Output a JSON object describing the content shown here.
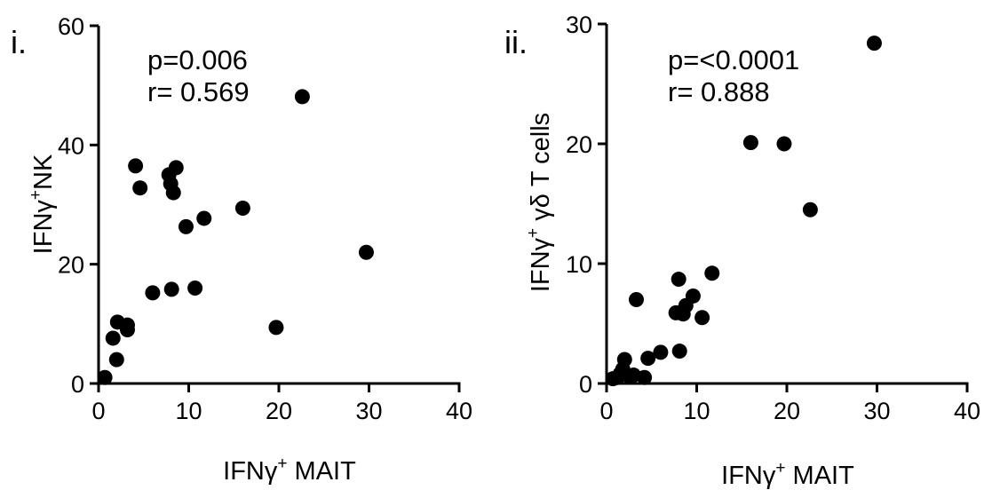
{
  "chart_data": [
    {
      "type": "scatter",
      "panel_label": "i.",
      "p_text": "p=0.006",
      "r_text": "r= 0.569",
      "xlabel_main": "IFNγ",
      "xlabel_sup": "+",
      "xlabel_rest": " MAIT",
      "ylabel_main": "IFNγ",
      "ylabel_sup": "+",
      "ylabel_rest": "NK",
      "xlim": [
        0,
        40
      ],
      "ylim": [
        0,
        60
      ],
      "xticks": [
        0,
        10,
        20,
        30,
        40
      ],
      "yticks": [
        0,
        20,
        40,
        60
      ],
      "points": [
        {
          "x": 0.7,
          "y": 1.0
        },
        {
          "x": 1.6,
          "y": 7.6
        },
        {
          "x": 2.0,
          "y": 4.0
        },
        {
          "x": 2.1,
          "y": 10.3
        },
        {
          "x": 3.2,
          "y": 9.8
        },
        {
          "x": 3.2,
          "y": 9.0
        },
        {
          "x": 4.1,
          "y": 36.5
        },
        {
          "x": 4.6,
          "y": 32.8
        },
        {
          "x": 6.0,
          "y": 15.2
        },
        {
          "x": 7.8,
          "y": 35.0
        },
        {
          "x": 8.0,
          "y": 33.5
        },
        {
          "x": 8.1,
          "y": 15.8
        },
        {
          "x": 8.3,
          "y": 32.0
        },
        {
          "x": 8.6,
          "y": 36.2
        },
        {
          "x": 9.7,
          "y": 26.3
        },
        {
          "x": 10.7,
          "y": 16.0
        },
        {
          "x": 11.7,
          "y": 27.7
        },
        {
          "x": 16.0,
          "y": 29.4
        },
        {
          "x": 19.7,
          "y": 9.4
        },
        {
          "x": 22.6,
          "y": 48.1
        },
        {
          "x": 29.7,
          "y": 22.0
        }
      ]
    },
    {
      "type": "scatter",
      "panel_label": "ii.",
      "p_text": "p=<0.0001",
      "r_text": "r= 0.888",
      "xlabel_main": "IFNγ",
      "xlabel_sup": "+",
      "xlabel_rest": " MAIT",
      "ylabel_main": "IFNγ",
      "ylabel_sup": "+",
      "ylabel_rest": " γδ T cells",
      "xlim": [
        0,
        40
      ],
      "ylim": [
        0,
        30
      ],
      "xticks": [
        0,
        10,
        20,
        30,
        40
      ],
      "yticks": [
        0,
        10,
        20,
        30
      ],
      "points": [
        {
          "x": 0.7,
          "y": 0.4
        },
        {
          "x": 1.2,
          "y": 0.5
        },
        {
          "x": 1.5,
          "y": 0.8
        },
        {
          "x": 1.8,
          "y": 1.2
        },
        {
          "x": 2.0,
          "y": 2.0
        },
        {
          "x": 2.5,
          "y": 0.6
        },
        {
          "x": 3.0,
          "y": 0.7
        },
        {
          "x": 3.3,
          "y": 7.0
        },
        {
          "x": 4.2,
          "y": 0.5
        },
        {
          "x": 4.6,
          "y": 2.1
        },
        {
          "x": 6.0,
          "y": 2.6
        },
        {
          "x": 7.7,
          "y": 5.9
        },
        {
          "x": 8.0,
          "y": 8.7
        },
        {
          "x": 8.1,
          "y": 2.7
        },
        {
          "x": 8.5,
          "y": 5.8
        },
        {
          "x": 8.8,
          "y": 6.5
        },
        {
          "x": 9.6,
          "y": 7.3
        },
        {
          "x": 10.6,
          "y": 5.5
        },
        {
          "x": 11.7,
          "y": 9.2
        },
        {
          "x": 16.0,
          "y": 20.1
        },
        {
          "x": 19.7,
          "y": 20.0
        },
        {
          "x": 22.6,
          "y": 14.5
        },
        {
          "x": 29.7,
          "y": 28.4
        }
      ]
    }
  ]
}
